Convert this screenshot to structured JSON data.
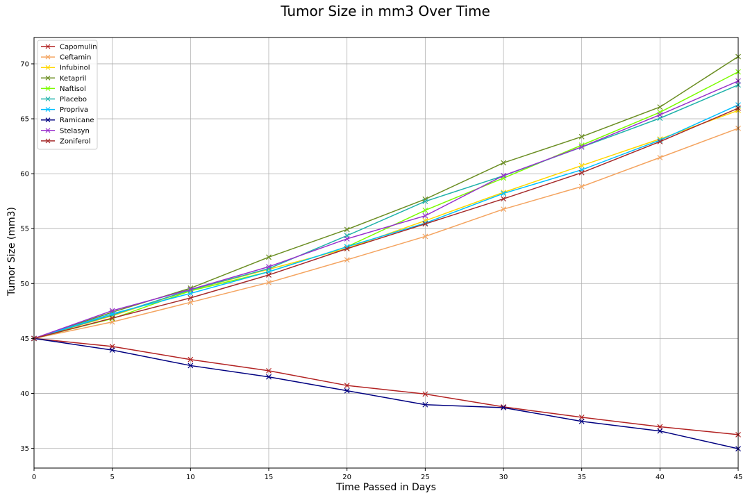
{
  "chart_data": {
    "type": "line",
    "title": "Tumor Size in mm3 Over Time",
    "xlabel": "Time Passed in Days",
    "ylabel": "Tumor Size (mm3)",
    "xlim": [
      0,
      45
    ],
    "ylim": [
      33.2,
      72.4
    ],
    "x_ticks": [
      0,
      5,
      10,
      15,
      20,
      25,
      30,
      35,
      40,
      45
    ],
    "y_ticks": [
      35,
      40,
      45,
      50,
      55,
      60,
      65,
      70
    ],
    "grid": true,
    "legend_position": "upper-left",
    "marker": "x",
    "x": [
      0,
      5,
      10,
      15,
      20,
      25,
      30,
      35,
      40,
      45
    ],
    "series": [
      {
        "name": "Capomulin",
        "color": "#b22222",
        "values": [
          45.0,
          44.27,
          43.08,
          42.06,
          40.72,
          39.94,
          38.77,
          37.82,
          36.96,
          36.24
        ]
      },
      {
        "name": "Ceftamin",
        "color": "#f4a460",
        "values": [
          45.0,
          46.5,
          48.29,
          50.09,
          52.16,
          54.29,
          56.77,
          58.83,
          61.47,
          64.13
        ]
      },
      {
        "name": "Infubinol",
        "color": "#ffd700",
        "values": [
          45.0,
          47.06,
          49.4,
          51.3,
          53.2,
          55.72,
          58.3,
          60.74,
          63.16,
          65.76
        ]
      },
      {
        "name": "Ketapril",
        "color": "#6b8e23",
        "values": [
          45.0,
          47.39,
          49.58,
          52.4,
          54.92,
          57.68,
          60.99,
          63.37,
          66.07,
          70.66
        ]
      },
      {
        "name": "Naftisol",
        "color": "#7cfc00",
        "values": [
          45.0,
          46.8,
          49.33,
          51.07,
          53.35,
          56.67,
          59.6,
          62.6,
          65.59,
          69.27
        ]
      },
      {
        "name": "Placebo",
        "color": "#20b2aa",
        "values": [
          45.0,
          47.13,
          49.42,
          51.36,
          54.36,
          57.48,
          59.81,
          62.42,
          65.05,
          68.08
        ]
      },
      {
        "name": "Propriva",
        "color": "#00bfff",
        "values": [
          45.0,
          47.25,
          49.1,
          51.07,
          53.35,
          55.5,
          58.2,
          60.35,
          63.05,
          66.26
        ]
      },
      {
        "name": "Ramicane",
        "color": "#000080",
        "values": [
          45.0,
          43.94,
          42.53,
          41.5,
          40.24,
          38.97,
          38.7,
          37.45,
          36.57,
          34.96
        ]
      },
      {
        "name": "Stelasyn",
        "color": "#9932cc",
        "values": [
          45.0,
          47.53,
          49.46,
          51.53,
          54.07,
          56.17,
          59.83,
          62.44,
          65.36,
          68.44
        ]
      },
      {
        "name": "Zoniferol",
        "color": "#a52a2a",
        "values": [
          45.0,
          46.85,
          48.69,
          50.78,
          53.17,
          55.43,
          57.71,
          60.09,
          62.92,
          65.96
        ]
      }
    ]
  }
}
